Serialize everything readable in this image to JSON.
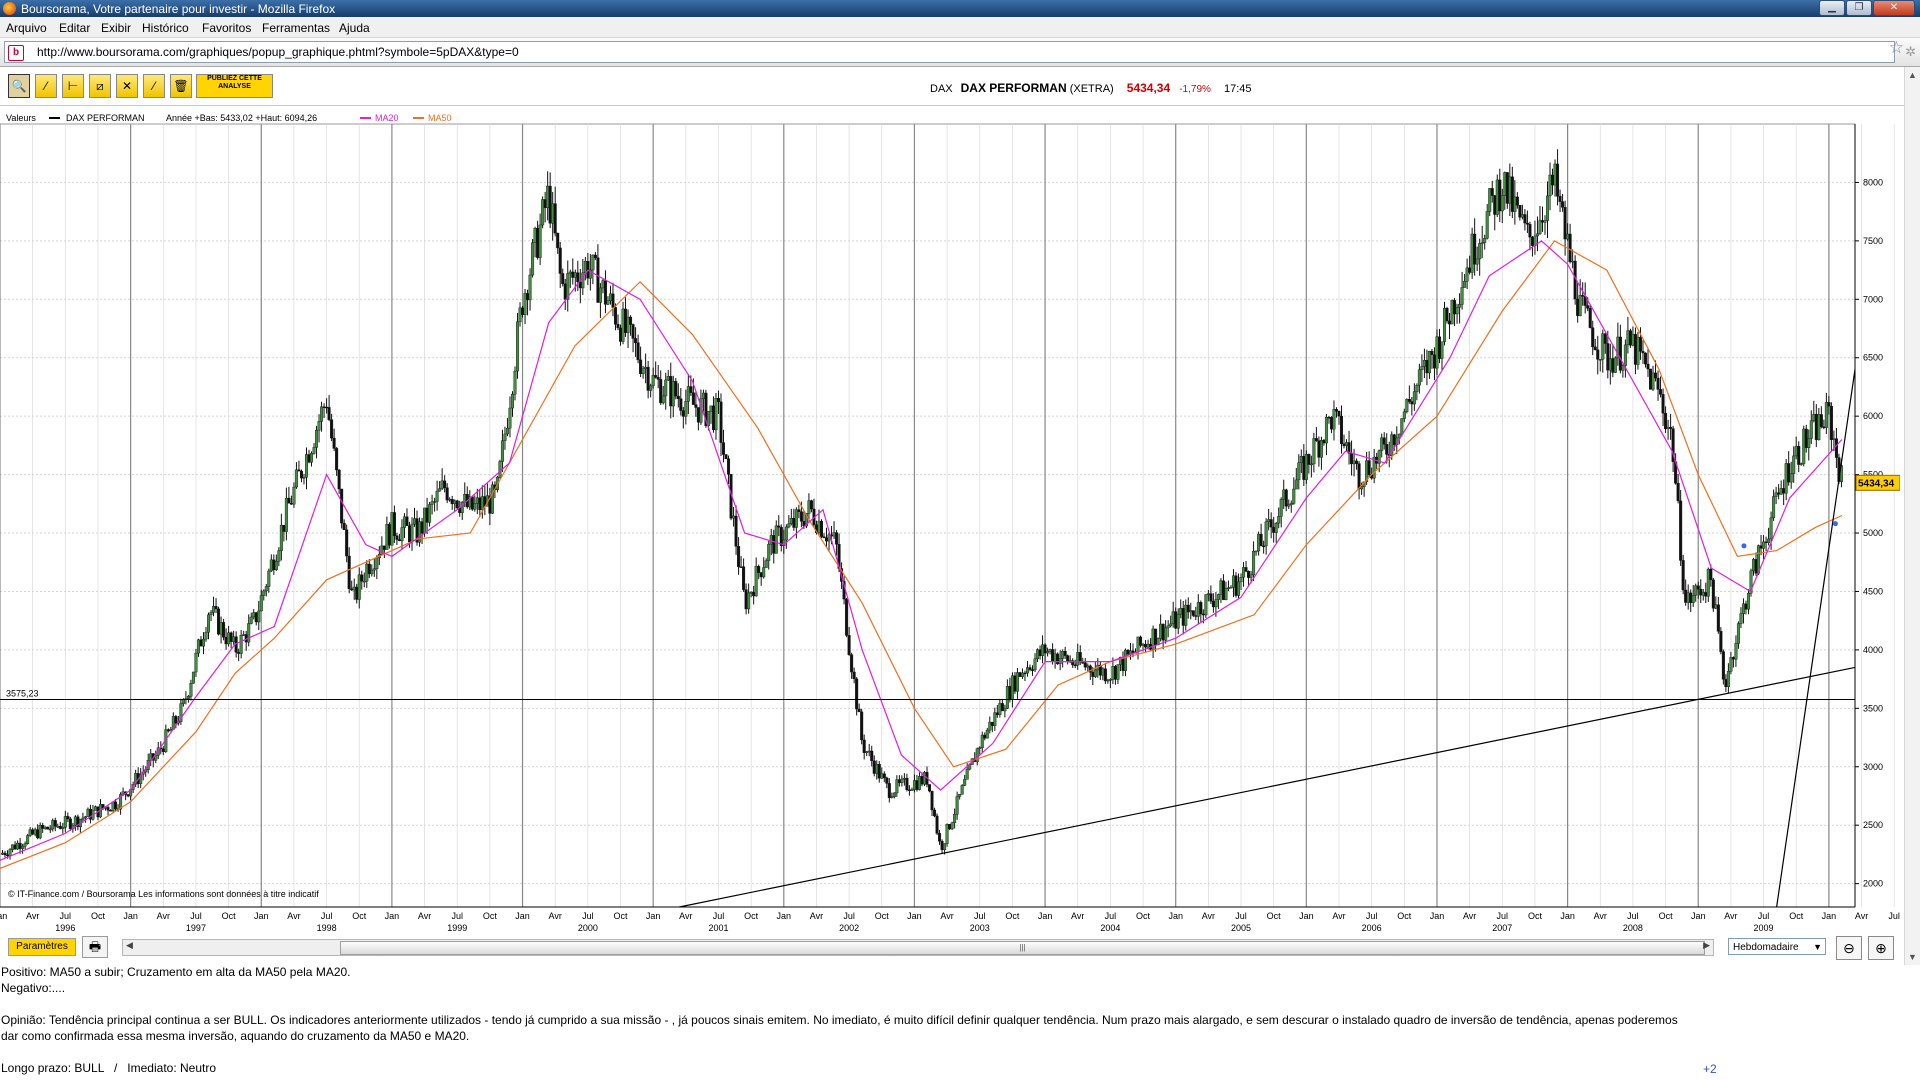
{
  "window": {
    "title": "Boursorama, Votre partenaire pour investir - Mozilla Firefox",
    "buttons": [
      "▁",
      "❐",
      "✕"
    ]
  },
  "menu": [
    "Arquivo",
    "Editar",
    "Exibir",
    "Histórico",
    "Favoritos",
    "Ferramentas",
    "Ajuda"
  ],
  "address": {
    "url": "http://www.boursorama.com/graphiques/popup_graphique.phtml?symbole=5pDAX&type=0"
  },
  "tools": {
    "publish_label": "PUBLIEZ CETTE ANALYSE"
  },
  "quote": {
    "symbol": "DAX",
    "name": "DAX PERFORMAN",
    "exchange": "(XETRA)",
    "price": "5434,34",
    "change": "-1,79%",
    "time": "17:45"
  },
  "legend": {
    "label": "Valeurs",
    "series": "DAX PERFORMAN",
    "stats": "Année +Bas: 5433,02 +Haut: 6094,26",
    "ma20": "MA20",
    "ma50": "MA50",
    "price_tag": "5434,34",
    "hline_label": "3575,23",
    "copyright": "© IT-Finance.com / Boursorama Les informations sont données à titre indicatif"
  },
  "chart_data": {
    "type": "candlestick",
    "series_name": "DAX PERFORMAN",
    "frequency": "Hebdomadaire",
    "ylim": [
      1800,
      8500
    ],
    "yticks": [
      2000,
      2500,
      3000,
      3500,
      4000,
      4500,
      5000,
      5500,
      6000,
      6500,
      7000,
      7500,
      8000
    ],
    "x_month_labels": [
      "Jan",
      "Avr",
      "Jul",
      "Oct",
      "Jan",
      "Avr",
      "Jul",
      "Oct",
      "Jan",
      "Avr",
      "Jul",
      "Oct",
      "Jan",
      "Avr",
      "Jul",
      "Oct",
      "Jan",
      "Avr",
      "Jul",
      "Oct",
      "Jan",
      "Avr",
      "Jul",
      "Oct",
      "Jan",
      "Avr",
      "Jul",
      "Oct",
      "Jan",
      "Avr",
      "Jul",
      "Oct",
      "Jan",
      "Avr",
      "Jul",
      "Oct",
      "Jan",
      "Avr",
      "Jul",
      "Oct",
      "Jan",
      "Avr",
      "Jul",
      "Oct",
      "Jan",
      "Avr",
      "Jul",
      "Oct",
      "Jan",
      "Avr",
      "Jul",
      "Oct",
      "Jan",
      "Avr",
      "Jul",
      "Oct",
      "Jan",
      "Avr",
      "Jul",
      "Oct",
      "Jan"
    ],
    "x_year_labels": [
      "1996",
      "1997",
      "1998",
      "1999",
      "2000",
      "2001",
      "2002",
      "2003",
      "2004",
      "2005",
      "2006",
      "2007",
      "2008",
      "2009"
    ],
    "x_range": [
      1996.0,
      2010.2
    ],
    "price_path": [
      [
        1996.0,
        2250
      ],
      [
        1996.3,
        2450
      ],
      [
        1996.6,
        2550
      ],
      [
        1996.9,
        2700
      ],
      [
        1997.2,
        3100
      ],
      [
        1997.4,
        3500
      ],
      [
        1997.6,
        4350
      ],
      [
        1997.8,
        4000
      ],
      [
        1997.95,
        4250
      ],
      [
        1998.2,
        5200
      ],
      [
        1998.5,
        6150
      ],
      [
        1998.7,
        4400
      ],
      [
        1998.8,
        4700
      ],
      [
        1999.0,
        5050
      ],
      [
        1999.2,
        5000
      ],
      [
        1999.4,
        5400
      ],
      [
        1999.6,
        5200
      ],
      [
        1999.8,
        5300
      ],
      [
        2000.0,
        7000
      ],
      [
        2000.2,
        7900
      ],
      [
        2000.3,
        7100
      ],
      [
        2000.5,
        7300
      ],
      [
        2000.7,
        6900
      ],
      [
        2001.0,
        6300
      ],
      [
        2001.3,
        6100
      ],
      [
        2001.5,
        6000
      ],
      [
        2001.7,
        4400
      ],
      [
        2001.9,
        4900
      ],
      [
        2002.2,
        5200
      ],
      [
        2002.4,
        4900
      ],
      [
        2002.6,
        3200
      ],
      [
        2002.8,
        2800
      ],
      [
        2003.1,
        2900
      ],
      [
        2003.2,
        2300
      ],
      [
        2003.5,
        3200
      ],
      [
        2003.8,
        3800
      ],
      [
        2004.0,
        4000
      ],
      [
        2004.2,
        3900
      ],
      [
        2004.5,
        3800
      ],
      [
        2004.8,
        4100
      ],
      [
        2005.0,
        4250
      ],
      [
        2005.5,
        4600
      ],
      [
        2005.9,
        5400
      ],
      [
        2006.2,
        6000
      ],
      [
        2006.4,
        5500
      ],
      [
        2006.6,
        5700
      ],
      [
        2007.0,
        6600
      ],
      [
        2007.3,
        7500
      ],
      [
        2007.5,
        8000
      ],
      [
        2007.7,
        7500
      ],
      [
        2007.9,
        8000
      ],
      [
        2008.1,
        6900
      ],
      [
        2008.3,
        6500
      ],
      [
        2008.5,
        6600
      ],
      [
        2008.7,
        6200
      ],
      [
        2008.8,
        5800
      ],
      [
        2008.9,
        4400
      ],
      [
        2009.1,
        4600
      ],
      [
        2009.2,
        3700
      ],
      [
        2009.4,
        4600
      ],
      [
        2009.7,
        5600
      ],
      [
        2009.9,
        5900
      ],
      [
        2010.0,
        6000
      ],
      [
        2010.1,
        5434
      ]
    ],
    "ma20_path": [
      [
        1996.0,
        2200
      ],
      [
        1996.5,
        2430
      ],
      [
        1997.0,
        2800
      ],
      [
        1997.5,
        3600
      ],
      [
        1997.8,
        4050
      ],
      [
        1998.1,
        4200
      ],
      [
        1998.5,
        5500
      ],
      [
        1998.8,
        4900
      ],
      [
        1999.0,
        4800
      ],
      [
        1999.5,
        5200
      ],
      [
        1999.9,
        5600
      ],
      [
        2000.2,
        6800
      ],
      [
        2000.5,
        7250
      ],
      [
        2000.9,
        7000
      ],
      [
        2001.3,
        6300
      ],
      [
        2001.7,
        5000
      ],
      [
        2002.0,
        4900
      ],
      [
        2002.3,
        5200
      ],
      [
        2002.6,
        4000
      ],
      [
        2002.9,
        3100
      ],
      [
        2003.2,
        2800
      ],
      [
        2003.6,
        3200
      ],
      [
        2004.0,
        3900
      ],
      [
        2004.5,
        3900
      ],
      [
        2005.0,
        4100
      ],
      [
        2005.5,
        4450
      ],
      [
        2006.0,
        5300
      ],
      [
        2006.3,
        5700
      ],
      [
        2006.6,
        5600
      ],
      [
        2007.1,
        6500
      ],
      [
        2007.4,
        7200
      ],
      [
        2007.8,
        7500
      ],
      [
        2008.0,
        7300
      ],
      [
        2008.4,
        6500
      ],
      [
        2008.8,
        5700
      ],
      [
        2009.1,
        4700
      ],
      [
        2009.4,
        4500
      ],
      [
        2009.7,
        5300
      ],
      [
        2010.1,
        5800
      ]
    ],
    "ma50_path": [
      [
        1996.0,
        2130
      ],
      [
        1996.5,
        2350
      ],
      [
        1997.0,
        2700
      ],
      [
        1997.5,
        3300
      ],
      [
        1997.8,
        3800
      ],
      [
        1998.1,
        4100
      ],
      [
        1998.5,
        4600
      ],
      [
        1998.9,
        4800
      ],
      [
        1999.2,
        4950
      ],
      [
        1999.6,
        5000
      ],
      [
        2000.0,
        5800
      ],
      [
        2000.4,
        6600
      ],
      [
        2000.9,
        7150
      ],
      [
        2001.3,
        6700
      ],
      [
        2001.8,
        5900
      ],
      [
        2002.2,
        5100
      ],
      [
        2002.6,
        4400
      ],
      [
        2003.0,
        3500
      ],
      [
        2003.3,
        3000
      ],
      [
        2003.7,
        3150
      ],
      [
        2004.1,
        3700
      ],
      [
        2004.5,
        3900
      ],
      [
        2005.0,
        4050
      ],
      [
        2005.6,
        4300
      ],
      [
        2006.0,
        4900
      ],
      [
        2006.5,
        5500
      ],
      [
        2007.0,
        6000
      ],
      [
        2007.5,
        6900
      ],
      [
        2007.9,
        7500
      ],
      [
        2008.3,
        7250
      ],
      [
        2008.7,
        6400
      ],
      [
        2009.0,
        5500
      ],
      [
        2009.3,
        4800
      ],
      [
        2009.6,
        4850
      ],
      [
        2009.9,
        5050
      ],
      [
        2010.1,
        5150
      ]
    ],
    "trendlines": [
      {
        "from": [
          2001.2,
          1800
        ],
        "to": [
          2010.2,
          3850
        ]
      },
      {
        "from": [
          2009.6,
          1800
        ],
        "to": [
          2010.2,
          6400
        ]
      }
    ],
    "hline": 3575.23,
    "markers": [
      [
        2009.35,
        4890
      ],
      [
        2010.05,
        5080
      ]
    ]
  },
  "chart_controls": {
    "params_label": "Paramètres",
    "period": "Hebdomadaire"
  },
  "article": {
    "positivo": "Positivo: MA50 a subir; Cruzamento em alta da MA50 pela MA20.",
    "negativo": "Negativo:....",
    "opiniao_1": "Opinião: Tendência principal continua a ser BULL. Os indicadores anteriormente utilizados - tendo já cumprido a sua missão - , já poucos sinais emitem. No imediato, é muito difícil definir qualquer tendência. Num prazo mais alargado, e sem descurar o instalado quadro de inversão de tendência, apenas poderemos",
    "opiniao_2": "dar como confirmada essa mesma inversão, aquando do cruzamento da MA50 e MA20.",
    "prazo": "Longo prazo: BULL   /   Imediato: Neutro",
    "plus": "+2"
  }
}
